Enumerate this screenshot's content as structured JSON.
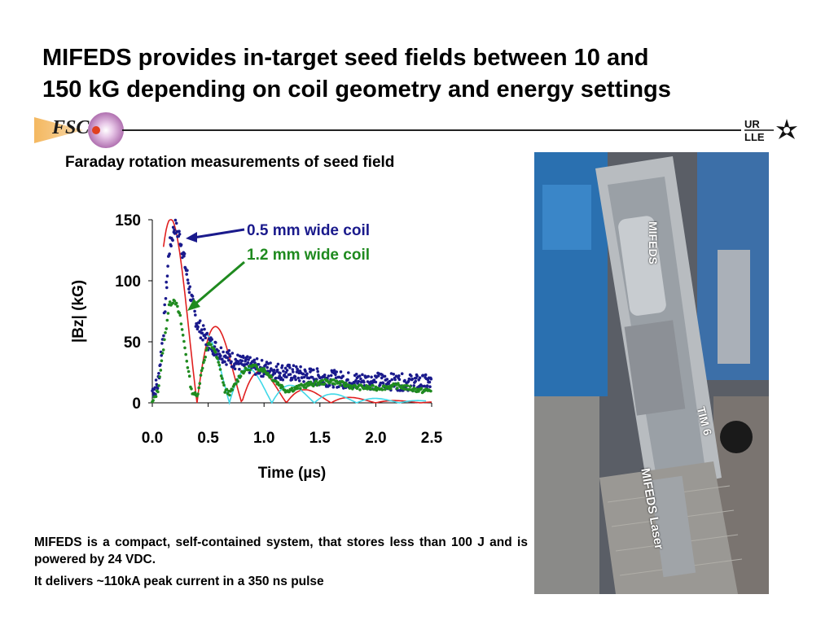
{
  "slide": {
    "title_line1": "MIFEDS provides in-target seed fields between 10 and",
    "title_line2": "150 kG depending on coil geometry and energy settings",
    "logo_left": "FSC",
    "logo_right_top": "UR",
    "logo_right_bottom": "LLE",
    "subtitle": "Faraday rotation measurements of seed field",
    "description": "MIFEDS is a compact, self-contained system, that stores less than 100 J and is powered by 24 VDC.",
    "description2": "It delivers ~110kA peak current in a 350 ns pulse"
  },
  "photo": {
    "labels": {
      "mifeds": "MIFEDS",
      "tim6": "TIM 6",
      "laser": "MIFEDS Laser"
    }
  },
  "colors": {
    "blue_data": "#1a1a8c",
    "green_data": "#1f8a1f",
    "red_model": "#e02020",
    "cyan_model": "#40d8e8",
    "annotation_blue": "#1a1a8c",
    "annotation_green": "#1f8a1f"
  },
  "chart_data": {
    "type": "scatter",
    "xlabel_prefix": "Time (",
    "xlabel_unit": "µs",
    "xlabel_suffix": ")",
    "ylabel_prefix": "|B",
    "ylabel_sub": "z",
    "ylabel_suffix": "| (kG)",
    "xlim": [
      0,
      2.5
    ],
    "ylim": [
      0,
      150
    ],
    "xticks": [
      "0.0",
      "0.5",
      "1.0",
      "1.5",
      "2.0",
      "2.5"
    ],
    "yticks": [
      "0",
      "50",
      "100",
      "150"
    ],
    "annotations": [
      "0.5 mm wide coil",
      "1.2 mm wide coil"
    ],
    "series": [
      {
        "name": "0.5 mm wide coil",
        "x": [
          0.0,
          0.05,
          0.1,
          0.15,
          0.2,
          0.25,
          0.3,
          0.35,
          0.4,
          0.5,
          0.6,
          0.7,
          0.8,
          0.9,
          1.0,
          1.2,
          1.4,
          1.6,
          1.8,
          2.0,
          2.2,
          2.5
        ],
        "y": [
          10,
          15,
          60,
          125,
          145,
          135,
          110,
          85,
          65,
          50,
          42,
          36,
          32,
          30,
          28,
          25,
          22,
          20,
          18,
          18,
          17,
          16
        ]
      },
      {
        "name": "1.2 mm wide coil",
        "x": [
          0.0,
          0.05,
          0.1,
          0.15,
          0.2,
          0.25,
          0.3,
          0.35,
          0.4,
          0.45,
          0.5,
          0.55,
          0.6,
          0.65,
          0.7,
          0.8,
          0.9,
          1.0,
          1.1,
          1.2,
          1.4,
          1.6,
          1.8,
          2.0,
          2.2,
          2.4,
          2.5
        ],
        "y": [
          0,
          10,
          45,
          80,
          85,
          70,
          40,
          10,
          5,
          30,
          48,
          45,
          30,
          10,
          8,
          25,
          30,
          27,
          18,
          10,
          15,
          18,
          13,
          12,
          14,
          10,
          10
        ]
      }
    ]
  }
}
